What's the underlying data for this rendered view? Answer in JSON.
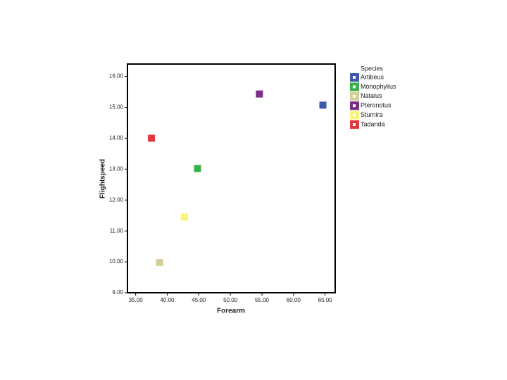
{
  "chart_data": {
    "type": "scatter",
    "x_label": "Forearm",
    "y_label": "Flightspeed",
    "legend_title": "Species",
    "xlim": [
      33.7,
      66.6
    ],
    "ylim": [
      9,
      16.4
    ],
    "xticks": [
      {
        "value": 35,
        "label": "35.00"
      },
      {
        "value": 40,
        "label": "40.00"
      },
      {
        "value": 45,
        "label": "45.00"
      },
      {
        "value": 50,
        "label": "50.00"
      },
      {
        "value": 55,
        "label": "55.00"
      },
      {
        "value": 60,
        "label": "60.00"
      },
      {
        "value": 65,
        "label": "65.00"
      }
    ],
    "yticks": [
      {
        "value": 9,
        "label": "9.00"
      },
      {
        "value": 10,
        "label": "10.00"
      },
      {
        "value": 11,
        "label": "11.00"
      },
      {
        "value": 12,
        "label": "12.00"
      },
      {
        "value": 13,
        "label": "13.00"
      },
      {
        "value": 14,
        "label": "14.00"
      },
      {
        "value": 15,
        "label": "15.00"
      },
      {
        "value": 16,
        "label": "16.00"
      }
    ],
    "series": [
      {
        "name": "Artibeus",
        "color": "#3b5ba9",
        "x": [
          64.65
        ],
        "values": [
          15.07
        ]
      },
      {
        "name": "Monophyllus",
        "color": "#3aae4a",
        "x": [
          44.8
        ],
        "values": [
          13.02
        ]
      },
      {
        "name": "Natalus",
        "color": "#d4cf96",
        "x": [
          38.8
        ],
        "values": [
          9.98
        ]
      },
      {
        "name": "Pteronotus",
        "color": "#7b2e86",
        "x": [
          54.6
        ],
        "values": [
          15.43
        ]
      },
      {
        "name": "Sturnira",
        "color": "#f6f47a",
        "x": [
          42.7
        ],
        "values": [
          11.45
        ]
      },
      {
        "name": "Tadarida",
        "color": "#e0383c",
        "x": [
          37.5
        ],
        "values": [
          14.0
        ]
      }
    ]
  }
}
